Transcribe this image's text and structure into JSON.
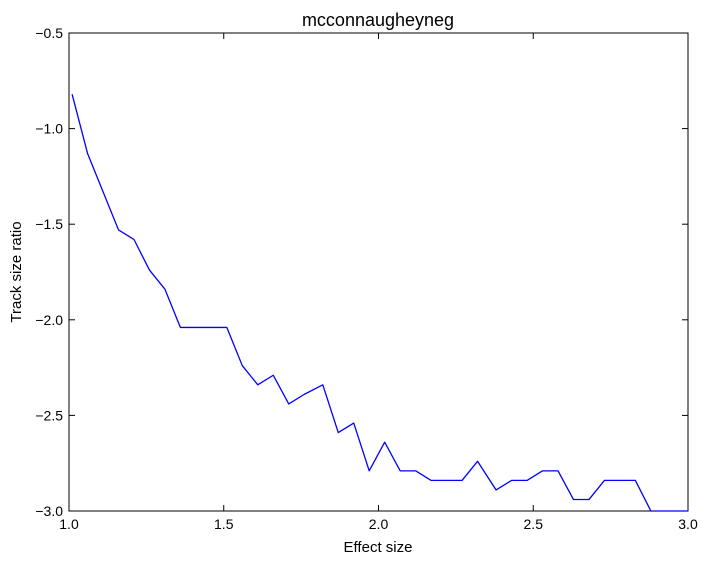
{
  "chart_data": {
    "type": "line",
    "title": "mcconnaugheyneg",
    "xlabel": "Effect size",
    "ylabel": "Track size ratio",
    "xlim": [
      1.0,
      3.0
    ],
    "ylim": [
      -3.0,
      -0.5
    ],
    "xticks": [
      "1.0",
      "1.5",
      "2.0",
      "2.5",
      "3.0"
    ],
    "yticks": [
      "−0.5",
      "−1.0",
      "−1.5",
      "−2.0",
      "−2.5",
      "−3.0"
    ],
    "ytick_values": [
      -0.5,
      -1.0,
      -1.5,
      -2.0,
      -2.5,
      -3.0
    ],
    "xtick_values": [
      1.0,
      1.5,
      2.0,
      2.5,
      3.0
    ],
    "grid": false,
    "series": [
      {
        "color": "#0000ff",
        "x": [
          1.01,
          1.06,
          1.11,
          1.16,
          1.21,
          1.26,
          1.31,
          1.36,
          1.41,
          1.46,
          1.51,
          1.56,
          1.61,
          1.66,
          1.71,
          1.76,
          1.82,
          1.87,
          1.92,
          1.97,
          2.02,
          2.07,
          2.12,
          2.17,
          2.22,
          2.27,
          2.32,
          2.38,
          2.43,
          2.48,
          2.53,
          2.58,
          2.63,
          2.68,
          2.73,
          2.78,
          2.83,
          2.88,
          2.93,
          2.98,
          3.0
        ],
        "y": [
          -0.82,
          -1.13,
          -1.33,
          -1.53,
          -1.58,
          -1.74,
          -1.84,
          -2.04,
          -2.04,
          -2.04,
          -2.04,
          -2.24,
          -2.34,
          -2.29,
          -2.44,
          -2.39,
          -2.34,
          -2.59,
          -2.54,
          -2.79,
          -2.64,
          -2.79,
          -2.79,
          -2.84,
          -2.84,
          -2.84,
          -2.74,
          -2.89,
          -2.84,
          -2.84,
          -2.79,
          -2.79,
          -2.94,
          -2.94,
          -2.84,
          -2.84,
          -2.84,
          -3.0,
          -3.0,
          -3.0,
          -3.0
        ]
      }
    ]
  }
}
